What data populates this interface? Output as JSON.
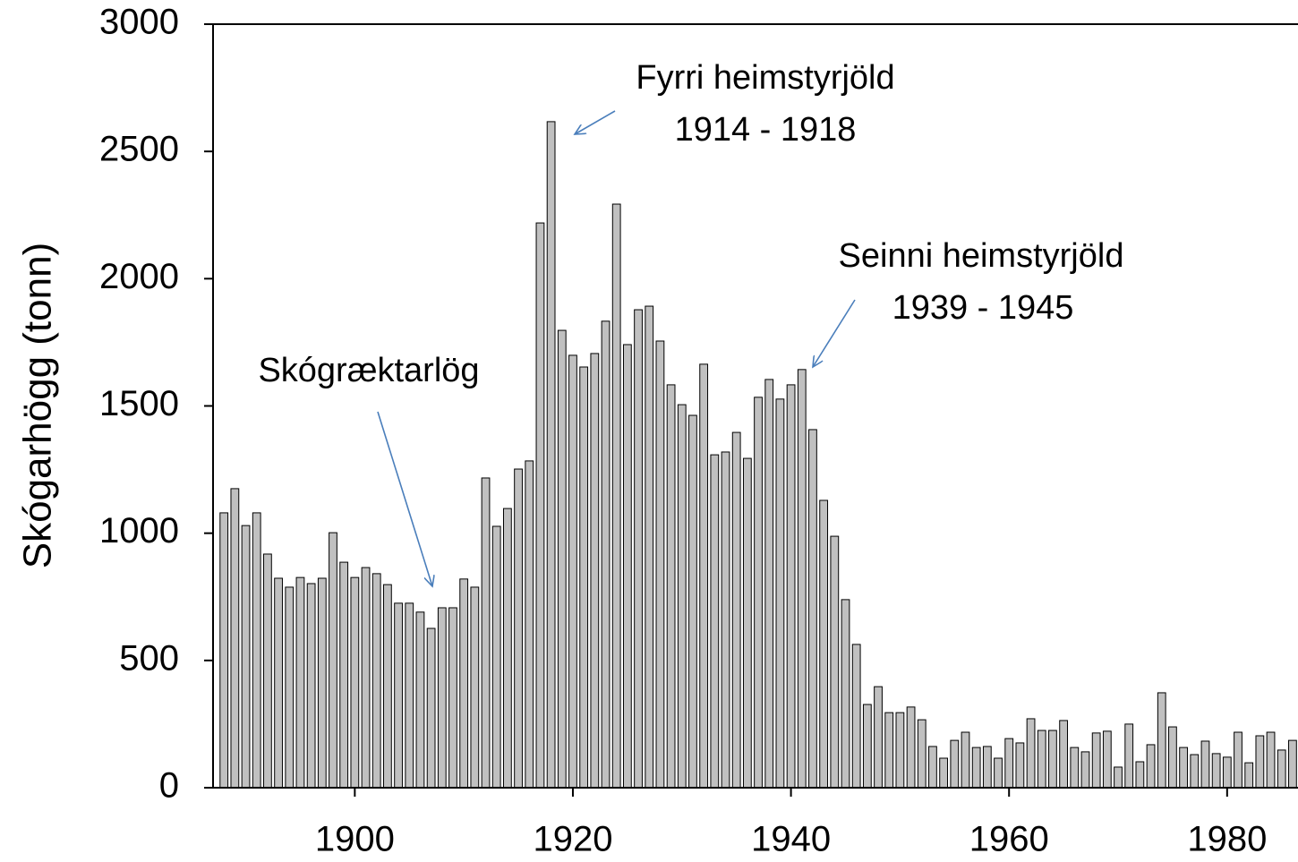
{
  "chart_data": {
    "type": "bar",
    "ylabel": "Skógarhögg (tonn)",
    "x": [
      1888,
      1889,
      1890,
      1891,
      1892,
      1893,
      1894,
      1895,
      1896,
      1897,
      1898,
      1899,
      1900,
      1901,
      1902,
      1903,
      1904,
      1905,
      1906,
      1907,
      1908,
      1909,
      1910,
      1911,
      1912,
      1913,
      1914,
      1915,
      1916,
      1917,
      1918,
      1919,
      1920,
      1921,
      1922,
      1923,
      1924,
      1925,
      1926,
      1927,
      1928,
      1929,
      1930,
      1931,
      1932,
      1933,
      1934,
      1935,
      1936,
      1937,
      1938,
      1939,
      1940,
      1941,
      1942,
      1943,
      1944,
      1945,
      1946,
      1947,
      1948,
      1949,
      1950,
      1951,
      1952,
      1953,
      1954,
      1955,
      1956,
      1957,
      1958,
      1959,
      1960,
      1961,
      1962,
      1963,
      1964,
      1965,
      1966,
      1967,
      1968,
      1969,
      1970,
      1971,
      1972,
      1973,
      1974,
      1975,
      1976,
      1977,
      1978,
      1979,
      1980,
      1981,
      1982,
      1983,
      1984,
      1985,
      1986
    ],
    "values": [
      1080,
      1175,
      1030,
      1080,
      918,
      823,
      788,
      826,
      802,
      823,
      1002,
      886,
      826,
      865,
      841,
      798,
      725,
      725,
      690,
      626,
      707,
      707,
      820,
      788,
      1217,
      1027,
      1097,
      1252,
      1284,
      2219,
      2617,
      1797,
      1699,
      1653,
      1706,
      1833,
      2293,
      1741,
      1878,
      1892,
      1755,
      1583,
      1505,
      1463,
      1664,
      1308,
      1319,
      1396,
      1294,
      1534,
      1604,
      1527,
      1583,
      1643,
      1407,
      1129,
      988,
      739,
      563,
      327,
      397,
      295,
      295,
      317,
      267,
      162,
      116,
      186,
      218,
      158,
      162,
      116,
      193,
      176,
      271,
      225,
      225,
      264,
      158,
      141,
      215,
      222,
      81,
      250,
      102,
      169,
      373,
      239,
      158,
      130,
      183,
      134,
      120,
      218,
      98,
      204,
      218,
      148,
      186
    ],
    "color": "#c0c0c0",
    "edgecolor": "#000000",
    "xlim": [
      1887,
      1986.5
    ],
    "xticks": [
      1900,
      1920,
      1940,
      1960,
      1980
    ],
    "ylim": [
      0,
      3000
    ],
    "yticks": [
      0,
      500,
      1000,
      1500,
      2000,
      2500,
      3000
    ],
    "grid": false,
    "annotations": [
      {
        "lines": [
          "Fyrri heimstyrjöld",
          "1914 - 1918"
        ]
      },
      {
        "lines": [
          "Seinni heimstyrjöld",
          "1939 - 1945"
        ]
      },
      {
        "lines": [
          "Skógræktarlög"
        ]
      }
    ]
  }
}
